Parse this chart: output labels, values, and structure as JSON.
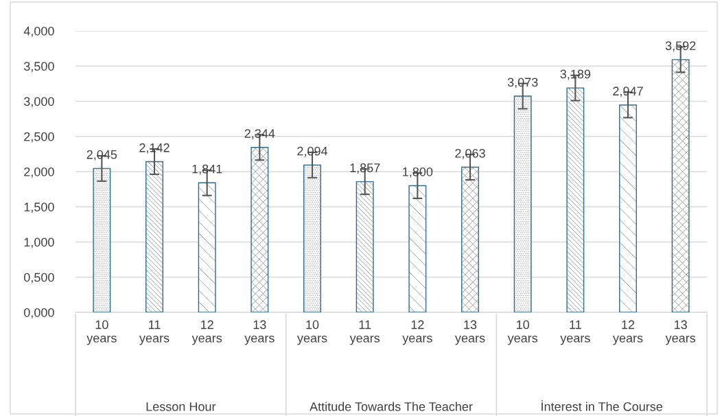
{
  "chart_data": {
    "type": "bar",
    "categories": [
      "10\nyears",
      "11\nyears",
      "12\nyears",
      "13\nyears",
      "10\nyears",
      "11\nyears",
      "12\nyears",
      "13\nyears",
      "10\nyears",
      "11\nyears",
      "12\nyears",
      "13\nyears"
    ],
    "values": [
      2.045,
      2.142,
      1.841,
      2.344,
      2.094,
      1.857,
      1.8,
      2.063,
      3.073,
      3.189,
      2.947,
      3.592
    ],
    "value_labels": [
      "2,045",
      "2,142",
      "1,841",
      "2,344",
      "2,094",
      "1,857",
      "1,800",
      "2,063",
      "3,073",
      "3,189",
      "2,947",
      "3,592"
    ],
    "errors": [
      0.18,
      0.18,
      0.18,
      0.18,
      0.18,
      0.18,
      0.18,
      0.18,
      0.18,
      0.18,
      0.18,
      0.18
    ],
    "colors": [
      "#8c8c8c",
      "#8c8c8c",
      "#8c8c8c",
      "#8c8c8c",
      "#8c8c8c",
      "#8c8c8c",
      "#8c8c8c",
      "#8c8c8c",
      "#8c8c8c",
      "#8c8c8c",
      "#8c8c8c",
      "#8c8c8c"
    ],
    "annotations": [
      "Lesson Hour",
      "Attitude Towards The Teacher",
      "İnterest in The Course"
    ],
    "ylim": [
      0,
      4
    ],
    "yticks": [
      {
        "value": 0,
        "label": "0,000"
      },
      {
        "value": 0.5,
        "label": "0,500"
      },
      {
        "value": 1,
        "label": "1,000"
      },
      {
        "value": 1.5,
        "label": "1,500"
      },
      {
        "value": 2,
        "label": "2,000"
      },
      {
        "value": 2.5,
        "label": "2,500"
      },
      {
        "value": 3,
        "label": "3,000"
      },
      {
        "value": 3.5,
        "label": "3,500"
      },
      {
        "value": 4,
        "label": "4,000"
      }
    ],
    "grid": "y",
    "legend": false
  }
}
